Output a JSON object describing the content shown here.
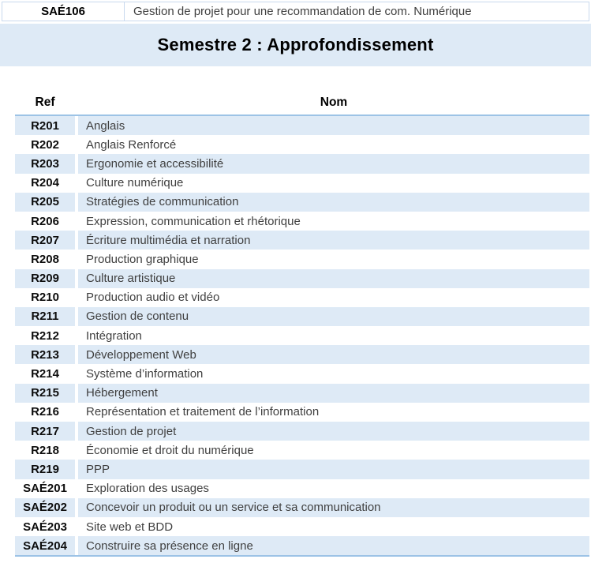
{
  "page": {
    "course_banner": {
      "ref": "SAÉ106",
      "title": "Gestion de projet pour une recommandation de com. Numérique"
    },
    "section": {
      "title": "Semestre 2 : Approfondissement"
    }
  },
  "table": {
    "headers": {
      "ref": "Ref",
      "name": "Nom"
    },
    "rows": [
      {
        "ref": "R201",
        "name": "Anglais"
      },
      {
        "ref": "R202",
        "name": "Anglais Renforcé"
      },
      {
        "ref": "R203",
        "name": "Ergonomie et accessibilité"
      },
      {
        "ref": "R204",
        "name": "Culture numérique"
      },
      {
        "ref": "R205",
        "name": "Stratégies de communication"
      },
      {
        "ref": "R206",
        "name": "Expression, communication et rhétorique"
      },
      {
        "ref": "R207",
        "name": "Écriture multimédia et narration"
      },
      {
        "ref": "R208",
        "name": "Production graphique"
      },
      {
        "ref": "R209",
        "name": "Culture artistique"
      },
      {
        "ref": "R210",
        "name": "Production audio et vidéo"
      },
      {
        "ref": "R211",
        "name": "Gestion de contenu"
      },
      {
        "ref": "R212",
        "name": "Intégration"
      },
      {
        "ref": "R213",
        "name": "Développement Web"
      },
      {
        "ref": "R214",
        "name": "Système d’information"
      },
      {
        "ref": "R215",
        "name": "Hébergement"
      },
      {
        "ref": "R216",
        "name": "Représentation et traitement de l’information"
      },
      {
        "ref": "R217",
        "name": "Gestion de projet"
      },
      {
        "ref": "R218",
        "name": "Économie et droit du numérique"
      },
      {
        "ref": "R219",
        "name": "PPP"
      },
      {
        "ref": "SAÉ201",
        "name": "Exploration des usages"
      },
      {
        "ref": "SAÉ202",
        "name": "Concevoir un produit ou un service et sa communication"
      },
      {
        "ref": "SAÉ203",
        "name": "Site web et BDD"
      },
      {
        "ref": "SAÉ204",
        "name": "Construire sa présence en ligne"
      }
    ]
  },
  "colors": {
    "band_blue": "#deeaf6",
    "border_blue": "#9dc3e6",
    "light_border_blue": "#c9d9ee",
    "body_text": "#404040",
    "heading_text": "#000000"
  }
}
